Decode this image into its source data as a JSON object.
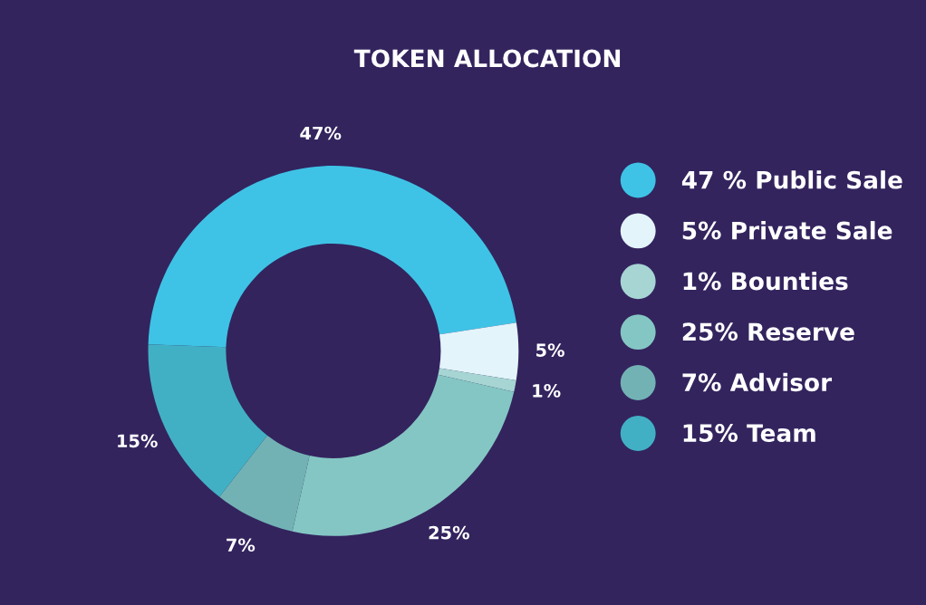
{
  "chart_data": {
    "type": "donut",
    "title": "TOKEN ALLOCATION",
    "categories": [
      "47 % Public Sale",
      "5% Private Sale",
      "1% Bounties",
      "25% Reserve",
      "7% Advisor",
      "15% Team"
    ],
    "values": [
      47,
      5,
      1,
      25,
      7,
      15
    ],
    "value_labels": [
      "47%",
      "5%",
      "1%",
      "25%",
      "7%",
      "15%"
    ],
    "colors": [
      "#3ec3e6",
      "#e3f4fb",
      "#a6d5d3",
      "#84c6c3",
      "#72b2b4",
      "#42b0c4"
    ],
    "legend": "right"
  }
}
